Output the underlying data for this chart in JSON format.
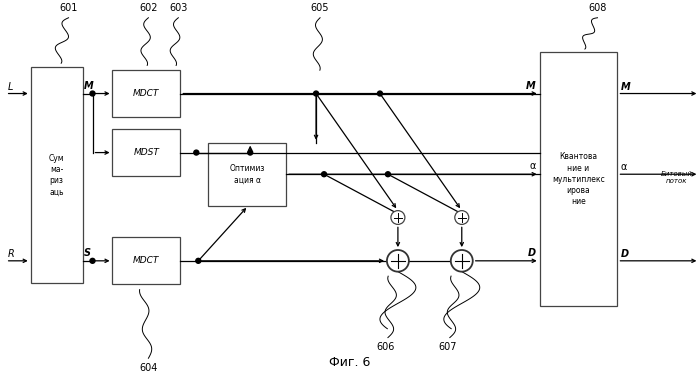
{
  "title": "Фиг. 6",
  "summ_text": "Сум\nма-\nриз\nаць",
  "mdct_text": "MDCT",
  "mdst_text": "MDST",
  "optim_text": "Оптимиз\nация α",
  "quant_text": "Квантова\nние и\nмультиплекс\nирова\nние",
  "bitstream_text": "Битовый\nпоток",
  "L_text": "L",
  "R_text": "R",
  "M_text": "M",
  "S_text": "S",
  "alpha_text": "α",
  "D_text": "D",
  "ref601": "601",
  "ref602": "602",
  "ref603": "603",
  "ref604": "604",
  "ref605": "605",
  "ref606": "606",
  "ref607": "607",
  "ref608": "608"
}
